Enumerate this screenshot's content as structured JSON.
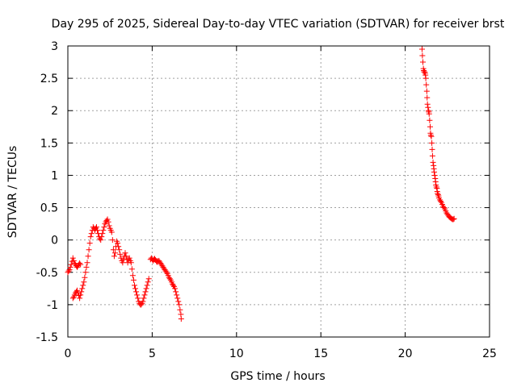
{
  "chart_data": {
    "type": "scatter",
    "title": "Day 295 of 2025, Sidereal Day-to-day VTEC variation (SDTVAR) for receiver brst",
    "xlabel": "GPS time / hours",
    "ylabel": "SDTVAR / TECUs",
    "xlim": [
      0,
      25
    ],
    "ylim": [
      -1.5,
      3
    ],
    "xticks": [
      0,
      5,
      10,
      15,
      20,
      25
    ],
    "xtick_labels": [
      "0",
      "5",
      "10",
      "15",
      "20",
      "25"
    ],
    "yticks": [
      -1.5,
      -1,
      -0.5,
      0,
      0.5,
      1,
      1.5,
      2,
      2.5,
      3
    ],
    "ytick_labels": [
      "-1.5",
      "-1",
      "-0.5",
      "0",
      "0.5",
      "1",
      "1.5",
      "2",
      "2.5",
      "3"
    ],
    "grid": true,
    "legend": "none",
    "marker": "plus",
    "color": "#ff0000",
    "series": [
      {
        "x": [
          0.0,
          0.05,
          0.1,
          0.15,
          0.2,
          0.25,
          0.3,
          0.35,
          0.4,
          0.45,
          0.5,
          0.55,
          0.6,
          0.65,
          0.7,
          0.75,
          0.3,
          0.35,
          0.4,
          0.45,
          0.5,
          0.55,
          0.6,
          0.65,
          0.7,
          0.75,
          0.8,
          0.85,
          0.9,
          0.95,
          1.0,
          1.05,
          1.1,
          1.15,
          1.2,
          1.25,
          1.3,
          1.35,
          1.4,
          1.45,
          1.5,
          1.55,
          1.6,
          1.65,
          1.7,
          1.75,
          1.8,
          1.85,
          1.9,
          1.95,
          2.0,
          2.05,
          2.1,
          2.15,
          2.2,
          2.25,
          2.3,
          2.35,
          2.4,
          2.45,
          2.5,
          2.55,
          2.6,
          2.65,
          2.7,
          2.75,
          2.8,
          2.85,
          2.9,
          2.95,
          3.0,
          3.05,
          3.1,
          3.15,
          3.2,
          3.25,
          3.3,
          3.35,
          3.4,
          3.45,
          3.5,
          3.55,
          3.6,
          3.65,
          3.7,
          3.75,
          3.8,
          3.85,
          3.9,
          3.95,
          4.0,
          4.05,
          4.1,
          4.15,
          4.2,
          4.25,
          4.3,
          4.35,
          4.4,
          4.45,
          4.5,
          4.55,
          4.6,
          4.65,
          4.7,
          4.75,
          4.8
        ],
        "y": [
          -0.5,
          -0.48,
          -0.46,
          -0.42,
          -0.38,
          -0.33,
          -0.28,
          -0.32,
          -0.36,
          -0.38,
          -0.4,
          -0.42,
          -0.4,
          -0.38,
          -0.36,
          -0.38,
          -0.9,
          -0.88,
          -0.85,
          -0.82,
          -0.8,
          -0.78,
          -0.82,
          -0.86,
          -0.9,
          -0.85,
          -0.8,
          -0.75,
          -0.7,
          -0.65,
          -0.58,
          -0.5,
          -0.42,
          -0.35,
          -0.25,
          -0.15,
          -0.05,
          0.05,
          0.1,
          0.15,
          0.2,
          0.18,
          0.15,
          0.18,
          0.2,
          0.15,
          0.1,
          0.05,
          0.02,
          0.0,
          0.05,
          0.1,
          0.15,
          0.2,
          0.25,
          0.28,
          0.3,
          0.32,
          0.28,
          0.22,
          0.18,
          0.15,
          0.12,
          0.0,
          -0.15,
          -0.25,
          -0.2,
          -0.1,
          -0.02,
          -0.05,
          -0.1,
          -0.15,
          -0.22,
          -0.28,
          -0.32,
          -0.35,
          -0.3,
          -0.25,
          -0.2,
          -0.25,
          -0.3,
          -0.35,
          -0.3,
          -0.28,
          -0.32,
          -0.35,
          -0.45,
          -0.55,
          -0.62,
          -0.7,
          -0.75,
          -0.8,
          -0.85,
          -0.9,
          -0.95,
          -0.98,
          -1.0,
          -1.0,
          -0.98,
          -0.95,
          -0.9,
          -0.85,
          -0.8,
          -0.75,
          -0.7,
          -0.65,
          -0.6
        ]
      },
      {
        "x": [
          4.9,
          4.95,
          5.0,
          5.05,
          5.1,
          5.15,
          5.2,
          5.25,
          5.3,
          5.35,
          5.4,
          5.45,
          5.5,
          5.55,
          5.6,
          5.65,
          5.7,
          5.75,
          5.8,
          5.85,
          5.9,
          5.95,
          6.0,
          6.05,
          6.1,
          6.15,
          6.2,
          6.25,
          6.3,
          6.35,
          6.4,
          6.45,
          6.5,
          6.55,
          6.6,
          6.65,
          6.7,
          6.72
        ],
        "y": [
          -0.3,
          -0.28,
          -0.3,
          -0.32,
          -0.3,
          -0.29,
          -0.31,
          -0.33,
          -0.34,
          -0.33,
          -0.32,
          -0.34,
          -0.36,
          -0.38,
          -0.4,
          -0.42,
          -0.44,
          -0.46,
          -0.48,
          -0.5,
          -0.52,
          -0.55,
          -0.58,
          -0.6,
          -0.62,
          -0.65,
          -0.68,
          -0.7,
          -0.72,
          -0.75,
          -0.8,
          -0.85,
          -0.9,
          -0.95,
          -1.0,
          -1.08,
          -1.15,
          -1.22
        ]
      },
      {
        "x": [
          21.0,
          21.02,
          21.05,
          21.08,
          21.1,
          21.12,
          21.15,
          21.18,
          21.2,
          21.22,
          21.25,
          21.28,
          21.3,
          21.32,
          21.35,
          21.38,
          21.4,
          21.42,
          21.45,
          21.48,
          21.5,
          21.52,
          21.55,
          21.58,
          21.6,
          21.62,
          21.65,
          21.68,
          21.7,
          21.72,
          21.75,
          21.78,
          21.8,
          21.82,
          21.85,
          21.88,
          21.9,
          21.92,
          21.95,
          21.98,
          22.0,
          22.05,
          22.1,
          22.15,
          22.2,
          22.25,
          22.3,
          22.35,
          22.4,
          22.45,
          22.5,
          22.55,
          22.6,
          22.65,
          22.7,
          22.75,
          22.8,
          22.85,
          22.9
        ],
        "y": [
          2.95,
          2.85,
          2.75,
          2.65,
          2.62,
          2.6,
          2.6,
          2.58,
          2.55,
          2.5,
          2.4,
          2.3,
          2.2,
          2.1,
          2.05,
          2.0,
          1.98,
          1.95,
          1.85,
          1.75,
          1.65,
          1.62,
          1.6,
          1.5,
          1.4,
          1.3,
          1.2,
          1.15,
          1.1,
          1.05,
          1.0,
          0.95,
          0.9,
          0.85,
          0.82,
          0.8,
          0.75,
          0.72,
          0.7,
          0.68,
          0.65,
          0.62,
          0.6,
          0.58,
          0.55,
          0.52,
          0.5,
          0.48,
          0.45,
          0.42,
          0.4,
          0.38,
          0.36,
          0.35,
          0.34,
          0.33,
          0.32,
          0.32,
          0.33
        ]
      }
    ]
  }
}
